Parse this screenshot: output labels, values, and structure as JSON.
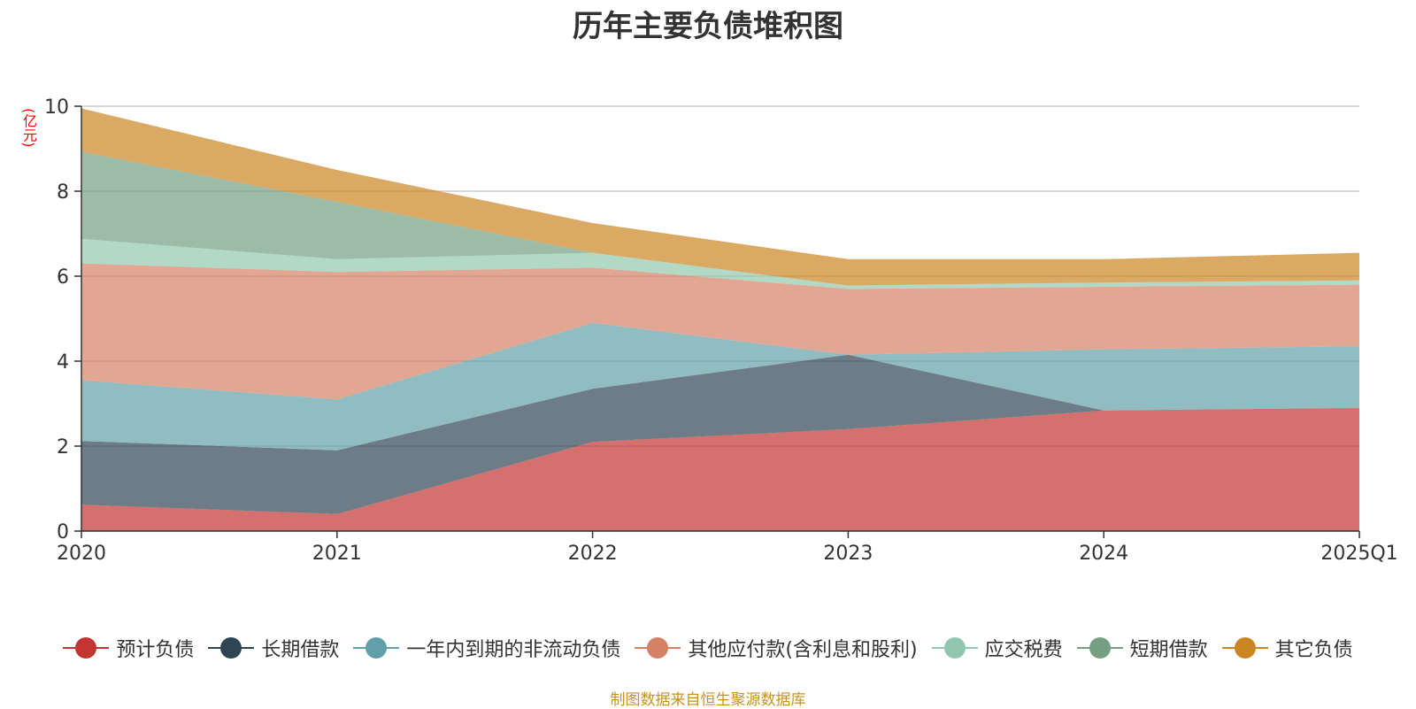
{
  "chart_data": {
    "type": "area",
    "stacked": true,
    "title": "历年主要负债堆积图",
    "unit_label": "(亿元)",
    "categories": [
      "2020",
      "2021",
      "2022",
      "2023",
      "2024",
      "2025Q1"
    ],
    "ylim": [
      0,
      10
    ],
    "yticks": [
      "0",
      "2",
      "4",
      "6",
      "8",
      "10"
    ],
    "grid": true,
    "legend_position": "bottom",
    "series": [
      {
        "name": "预计负债",
        "color": "#c23531",
        "values": [
          0.62,
          0.4,
          2.1,
          2.4,
          2.84,
          2.9
        ]
      },
      {
        "name": "长期借款",
        "color": "#2f4554",
        "values": [
          1.5,
          1.5,
          1.25,
          1.75,
          0.0,
          0.0
        ]
      },
      {
        "name": "一年内到期的非流动负债",
        "color": "#61a0a8",
        "values": [
          1.43,
          1.2,
          1.55,
          0.0,
          1.44,
          1.45
        ]
      },
      {
        "name": "其他应付款(含利息和股利)",
        "color": "#d48265",
        "values": [
          2.75,
          3.0,
          1.3,
          1.55,
          1.47,
          1.45
        ]
      },
      {
        "name": "应交税费",
        "color": "#91c7ae",
        "values": [
          0.58,
          0.3,
          0.35,
          0.08,
          0.1,
          0.1
        ]
      },
      {
        "name": "短期借款",
        "color": "#749f83",
        "values": [
          2.05,
          1.35,
          0.0,
          0.0,
          0.0,
          0.0
        ]
      },
      {
        "name": "其它负债",
        "color": "#ca8622",
        "values": [
          1.02,
          0.75,
          0.7,
          0.62,
          0.55,
          0.65
        ]
      }
    ],
    "source_note": "制图数据来自恒生聚源数据库"
  }
}
